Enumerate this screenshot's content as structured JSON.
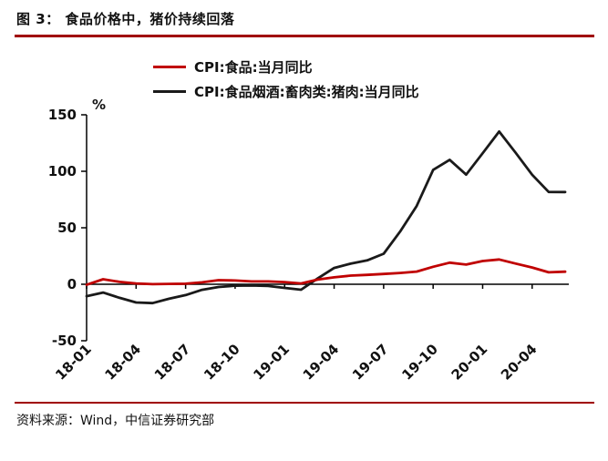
{
  "figure": {
    "title": "图 3：  食品价格中，猪价持续回落",
    "source": "资料来源：Wind，中信证券研究部",
    "accent_color": "#a00000"
  },
  "chart_data": {
    "type": "line",
    "title": "食品价格中，猪价持续回落",
    "ylabel": "%",
    "xlabel": "",
    "ylim": [
      -50,
      150
    ],
    "yticks": [
      150,
      100,
      50,
      0,
      -50
    ],
    "grid": false,
    "legend_position": "top-center",
    "x": [
      "18-01",
      "18-02",
      "18-03",
      "18-04",
      "18-05",
      "18-06",
      "18-07",
      "18-08",
      "18-09",
      "18-10",
      "18-11",
      "18-12",
      "19-01",
      "19-02",
      "19-03",
      "19-04",
      "19-05",
      "19-06",
      "19-07",
      "19-08",
      "19-09",
      "19-10",
      "19-11",
      "19-12",
      "20-01",
      "20-02",
      "20-03",
      "20-04",
      "20-05",
      "20-06"
    ],
    "xtick_labels": [
      "18-01",
      "18-04",
      "18-07",
      "18-10",
      "19-01",
      "19-04",
      "19-07",
      "19-10",
      "20-01",
      "20-04"
    ],
    "xtick_step": 3,
    "series": [
      {
        "name": "CPI:食品:当月同比",
        "color": "#c00000",
        "values": [
          -0.5,
          4.4,
          2.1,
          0.7,
          0.1,
          0.3,
          0.5,
          1.7,
          3.6,
          3.3,
          2.5,
          2.5,
          1.9,
          0.7,
          4.1,
          6.1,
          7.7,
          8.3,
          9.1,
          10.0,
          11.2,
          15.5,
          19.1,
          17.4,
          20.6,
          21.9,
          18.3,
          14.8,
          10.6,
          11.1
        ]
      },
      {
        "name": "CPI:食品烟酒:畜肉类:猪肉:当月同比",
        "color": "#1a1a1a",
        "values": [
          -10.6,
          -7.3,
          -12.0,
          -16.1,
          -16.7,
          -12.8,
          -9.6,
          -4.9,
          -2.4,
          -1.3,
          -1.1,
          -1.5,
          -3.2,
          -4.8,
          5.1,
          14.4,
          18.2,
          21.1,
          27.0,
          46.7,
          69.3,
          101.3,
          110.2,
          97.0,
          116.0,
          135.2,
          116.4,
          96.9,
          81.7,
          81.6
        ]
      }
    ]
  }
}
